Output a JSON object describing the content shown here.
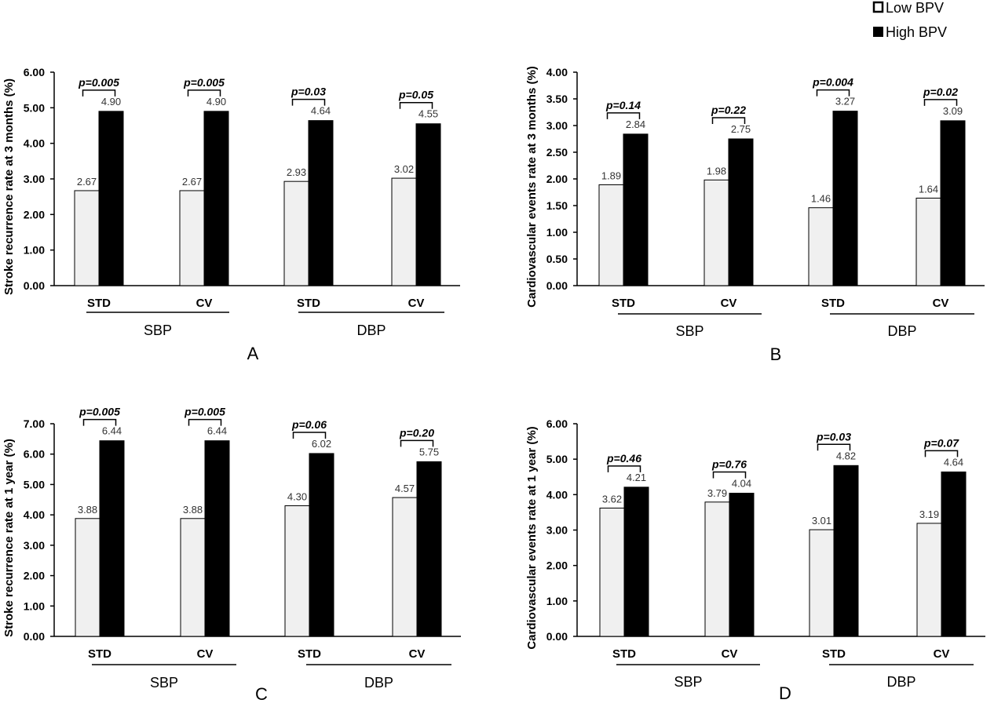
{
  "colors": {
    "low": "#f0f0f0",
    "high": "#000000",
    "axis": "#000000"
  },
  "legend": {
    "low_label": "Low BPV",
    "high_label": "High BPV"
  },
  "chart_data": [
    {
      "type": "bar",
      "panel_label": "A",
      "ylabel": "Stroke recurrence rate at 3 months (%)",
      "ylim": [
        0,
        6
      ],
      "yticks": [
        "0.00",
        "1.00",
        "2.00",
        "3.00",
        "4.00",
        "5.00",
        "6.00"
      ],
      "categories": [
        "STD",
        "CV",
        "STD",
        "CV"
      ],
      "groups": [
        "SBP",
        "DBP"
      ],
      "series": [
        {
          "name": "Low BPV",
          "values": [
            2.67,
            2.67,
            2.93,
            3.02
          ],
          "labels": [
            "2.67",
            "2.67",
            "2.93",
            "3.02"
          ]
        },
        {
          "name": "High BPV",
          "values": [
            4.9,
            4.9,
            4.64,
            4.55
          ],
          "labels": [
            "4.90",
            "4.90",
            "4.64",
            "4.55"
          ]
        }
      ],
      "p_values": [
        "p=0.005",
        "p=0.005",
        "p=0.03",
        "p=0.05"
      ]
    },
    {
      "type": "bar",
      "panel_label": "B",
      "ylabel": "Cardiovascular events rate at 3 months (%)",
      "ylim": [
        0,
        4
      ],
      "yticks": [
        "0.00",
        "0.50",
        "1.00",
        "1.50",
        "2.00",
        "2.50",
        "3.00",
        "3.50",
        "4.00"
      ],
      "categories": [
        "STD",
        "CV",
        "STD",
        "CV"
      ],
      "groups": [
        "SBP",
        "DBP"
      ],
      "series": [
        {
          "name": "Low BPV",
          "values": [
            1.89,
            1.98,
            1.46,
            1.64
          ],
          "labels": [
            "1.89",
            "1.98",
            "1.46",
            "1.64"
          ]
        },
        {
          "name": "High BPV",
          "values": [
            2.84,
            2.75,
            3.27,
            3.09
          ],
          "labels": [
            "2.84",
            "2.75",
            "3.27",
            "3.09"
          ]
        }
      ],
      "p_values": [
        "p=0.14",
        "p=0.22",
        "p=0.004",
        "p=0.02"
      ]
    },
    {
      "type": "bar",
      "panel_label": "C",
      "ylabel": "Stroke recurrence rate at 1 year (%)",
      "ylim": [
        0,
        7
      ],
      "yticks": [
        "0.00",
        "1.00",
        "2.00",
        "3.00",
        "4.00",
        "5.00",
        "6.00",
        "7.00"
      ],
      "categories": [
        "STD",
        "CV",
        "STD",
        "CV"
      ],
      "groups": [
        "SBP",
        "DBP"
      ],
      "series": [
        {
          "name": "Low BPV",
          "values": [
            3.88,
            3.88,
            4.3,
            4.57
          ],
          "labels": [
            "3.88",
            "3.88",
            "4.30",
            "4.57"
          ]
        },
        {
          "name": "High BPV",
          "values": [
            6.44,
            6.44,
            6.02,
            5.75
          ],
          "labels": [
            "6.44",
            "6.44",
            "6.02",
            "5.75"
          ]
        }
      ],
      "p_values": [
        "p=0.005",
        "p=0.005",
        "p=0.06",
        "p=0.20"
      ]
    },
    {
      "type": "bar",
      "panel_label": "D",
      "ylabel": "Cardiovascular events rate at 1 year (%)",
      "ylim": [
        0,
        6
      ],
      "yticks": [
        "0.00",
        "1.00",
        "2.00",
        "3.00",
        "4.00",
        "5.00",
        "6.00"
      ],
      "categories": [
        "STD",
        "CV",
        "STD",
        "CV"
      ],
      "groups": [
        "SBP",
        "DBP"
      ],
      "series": [
        {
          "name": "Low BPV",
          "values": [
            3.62,
            3.79,
            3.01,
            3.19
          ],
          "labels": [
            "3.62",
            "3.79",
            "3.01",
            "3.19"
          ]
        },
        {
          "name": "High BPV",
          "values": [
            4.21,
            4.04,
            4.82,
            4.64
          ],
          "labels": [
            "4.21",
            "4.04",
            "4.82",
            "4.64"
          ]
        }
      ],
      "p_values": [
        "p=0.46",
        "p=0.76",
        "p=0.03",
        "p=0.07"
      ]
    }
  ]
}
